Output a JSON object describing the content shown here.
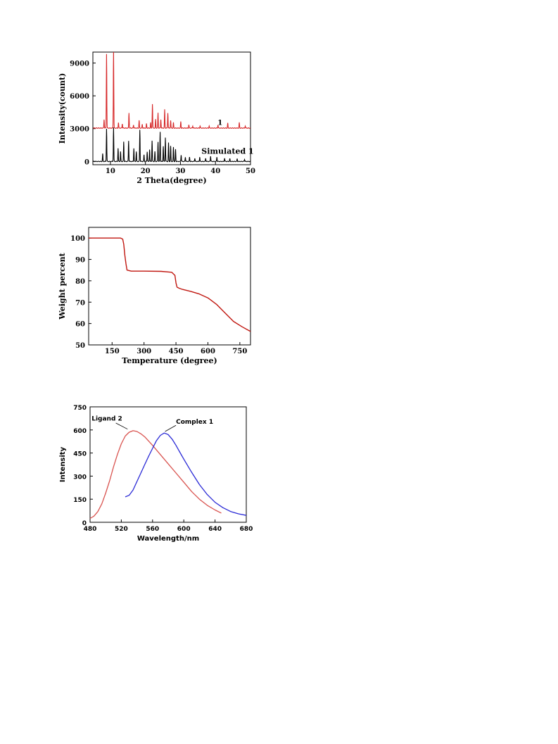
{
  "chart_data": [
    {
      "type": "line",
      "xlabel": "2 Theta(degree)",
      "ylabel": "Intensity(count)",
      "xlim": [
        5,
        50
      ],
      "ylim": [
        -300,
        10000
      ],
      "x_ticks": [
        "10",
        "20",
        "30",
        "40",
        "50"
      ],
      "y_ticks": [
        "0",
        "3000",
        "6000",
        "9000"
      ],
      "grid": false,
      "series": [
        {
          "name": "1",
          "color": "#d62728",
          "baseline": 3050,
          "peaks": [
            [
              8.2,
              800
            ],
            [
              8.9,
              6800
            ],
            [
              10.9,
              7200
            ],
            [
              12.3,
              500
            ],
            [
              13.4,
              400
            ],
            [
              15.3,
              1400
            ],
            [
              16.6,
              300
            ],
            [
              18.2,
              700
            ],
            [
              19.1,
              350
            ],
            [
              20.3,
              400
            ],
            [
              21.5,
              500
            ],
            [
              22.0,
              2200
            ],
            [
              22.9,
              800
            ],
            [
              23.6,
              1400
            ],
            [
              24.4,
              800
            ],
            [
              25.5,
              1700
            ],
            [
              26.4,
              1400
            ],
            [
              27.2,
              700
            ],
            [
              28.0,
              500
            ],
            [
              30.1,
              600
            ],
            [
              32.4,
              300
            ],
            [
              33.5,
              200
            ],
            [
              35.6,
              200
            ],
            [
              38.2,
              200
            ],
            [
              40.7,
              300
            ],
            [
              43.5,
              450
            ],
            [
              46.8,
              500
            ],
            [
              48.5,
              200
            ]
          ]
        },
        {
          "name": "Simulated 1",
          "color": "#000000",
          "baseline": 0,
          "peaks": [
            [
              7.8,
              700
            ],
            [
              8.9,
              3000
            ],
            [
              10.9,
              3100
            ],
            [
              12.2,
              1200
            ],
            [
              12.9,
              900
            ],
            [
              13.8,
              1800
            ],
            [
              15.2,
              1900
            ],
            [
              16.7,
              1200
            ],
            [
              17.4,
              900
            ],
            [
              18.4,
              2900
            ],
            [
              19.6,
              600
            ],
            [
              20.5,
              900
            ],
            [
              21.2,
              1100
            ],
            [
              21.9,
              1900
            ],
            [
              22.7,
              900
            ],
            [
              23.6,
              1800
            ],
            [
              24.2,
              2700
            ],
            [
              25.1,
              1400
            ],
            [
              25.7,
              2200
            ],
            [
              26.6,
              1700
            ],
            [
              27.2,
              1400
            ],
            [
              28.0,
              1300
            ],
            [
              28.6,
              1100
            ],
            [
              30.2,
              600
            ],
            [
              31.4,
              400
            ],
            [
              32.6,
              400
            ],
            [
              34.1,
              300
            ],
            [
              35.5,
              400
            ],
            [
              37.2,
              300
            ],
            [
              38.6,
              500
            ],
            [
              40.4,
              400
            ],
            [
              42.6,
              300
            ],
            [
              44.1,
              250
            ],
            [
              46.2,
              250
            ],
            [
              48.3,
              200
            ]
          ]
        }
      ]
    },
    {
      "type": "line",
      "xlabel": "Temperature (degree)",
      "ylabel": "Weight percent",
      "xlim": [
        40,
        800
      ],
      "ylim": [
        50,
        105
      ],
      "x_ticks": [
        "150",
        "300",
        "450",
        "600",
        "750"
      ],
      "y_ticks": [
        "50",
        "60",
        "70",
        "80",
        "90",
        "100"
      ],
      "grid": false,
      "series": [
        {
          "color": "#c0160f",
          "x": [
            40,
            100,
            150,
            190,
            200,
            205,
            210,
            215,
            220,
            240,
            300,
            380,
            430,
            445,
            450,
            455,
            465,
            480,
            520,
            560,
            600,
            640,
            680,
            720,
            760,
            800
          ],
          "y": [
            100,
            100,
            100,
            100,
            99.5,
            97,
            92,
            88,
            85,
            84.5,
            84.5,
            84.4,
            84,
            82.5,
            79,
            77,
            76.5,
            76,
            75,
            73.8,
            72,
            69,
            65,
            61,
            58.5,
            56.3
          ]
        }
      ]
    },
    {
      "type": "line",
      "xlabel": "Wavelength/nm",
      "ylabel": "Intensity",
      "xlim": [
        480,
        680
      ],
      "ylim": [
        0,
        750
      ],
      "x_ticks": [
        "480",
        "520",
        "560",
        "600",
        "640",
        "680"
      ],
      "y_ticks": [
        "0",
        "150",
        "300",
        "450",
        "600",
        "750"
      ],
      "grid": false,
      "series": [
        {
          "name": "Ligand 2",
          "color": "#d9534f",
          "x": [
            480,
            485,
            490,
            495,
            500,
            505,
            510,
            515,
            520,
            525,
            530,
            535,
            540,
            545,
            550,
            560,
            570,
            580,
            590,
            600,
            610,
            620,
            630,
            640,
            648
          ],
          "y": [
            25,
            40,
            70,
            120,
            190,
            270,
            360,
            440,
            510,
            560,
            585,
            595,
            590,
            575,
            555,
            500,
            440,
            380,
            320,
            260,
            200,
            150,
            110,
            80,
            60
          ]
        },
        {
          "name": "Complex 1",
          "color": "#2a2ad6",
          "x": [
            525,
            530,
            535,
            540,
            545,
            550,
            555,
            560,
            565,
            570,
            575,
            580,
            585,
            590,
            595,
            600,
            610,
            620,
            630,
            640,
            650,
            660,
            670,
            680
          ],
          "y": [
            165,
            175,
            210,
            265,
            320,
            375,
            430,
            480,
            530,
            565,
            580,
            570,
            540,
            500,
            455,
            410,
            325,
            245,
            180,
            130,
            95,
            70,
            55,
            45
          ]
        }
      ],
      "annotations": [
        "Ligand 2",
        "Complex 1"
      ]
    }
  ]
}
